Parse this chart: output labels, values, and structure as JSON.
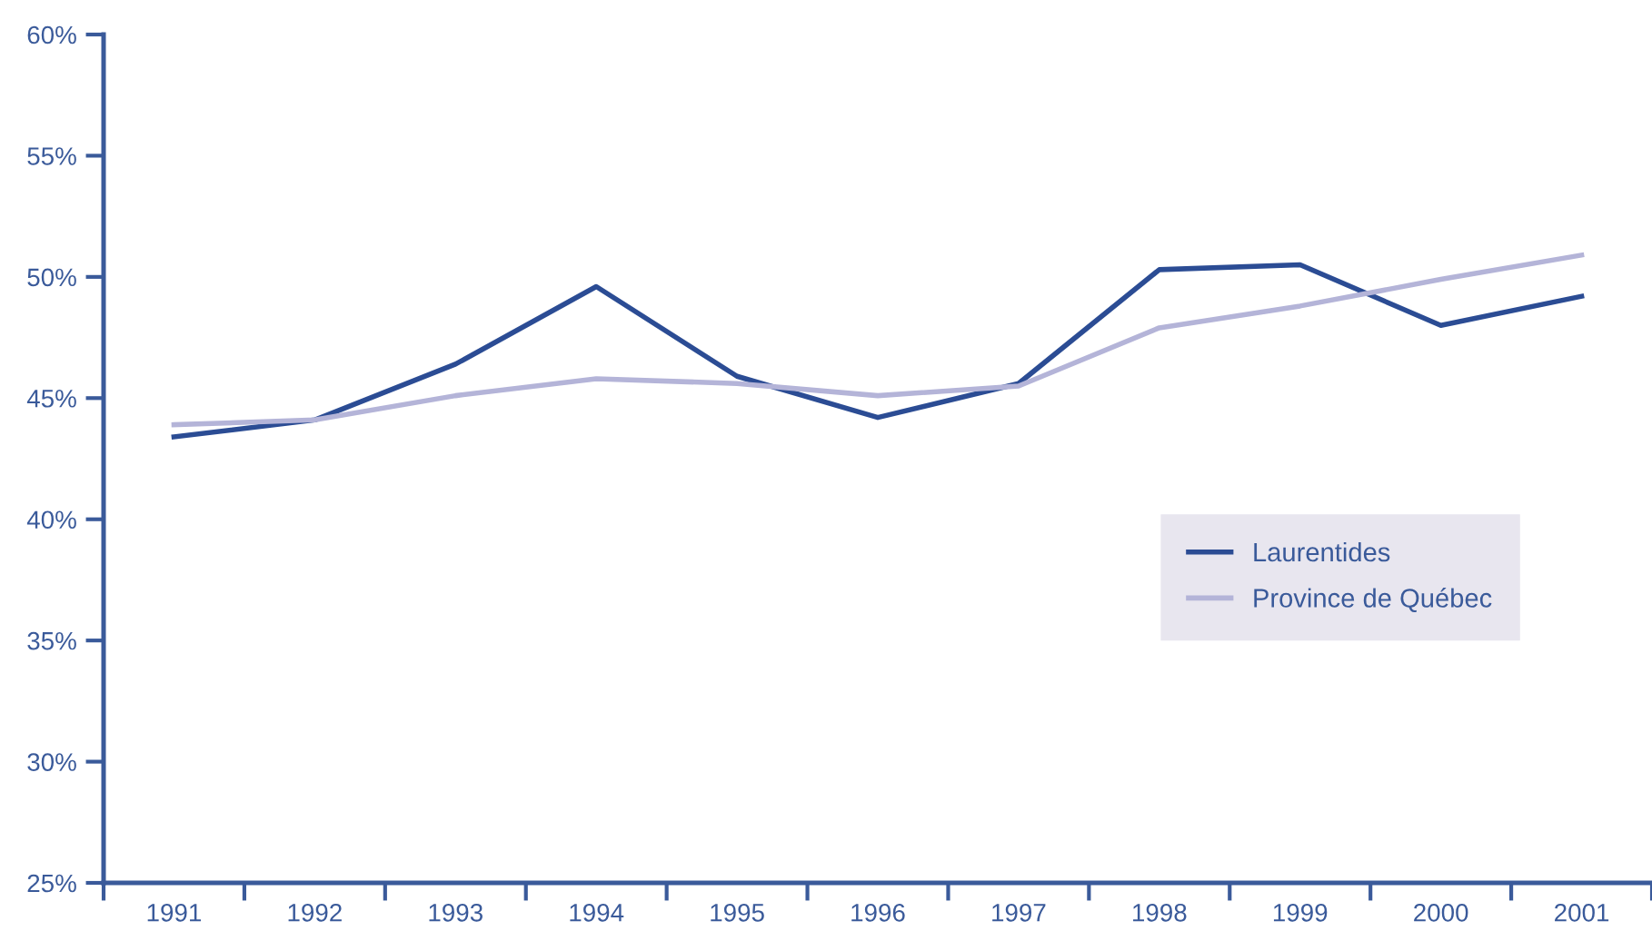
{
  "chart_data": {
    "type": "line",
    "categories": [
      "1991",
      "1992",
      "1993",
      "1994",
      "1995",
      "1996",
      "1997",
      "1998",
      "1999",
      "2000",
      "2001"
    ],
    "series": [
      {
        "name": "Laurentides",
        "color": "#2b4c94",
        "values": [
          43.4,
          44.1,
          46.4,
          49.6,
          45.9,
          44.2,
          45.6,
          50.3,
          50.5,
          48.0,
          49.2
        ]
      },
      {
        "name": "Province de Québec",
        "color": "#b4b4d8",
        "values": [
          43.9,
          44.1,
          45.1,
          45.8,
          45.6,
          45.1,
          45.5,
          47.9,
          48.8,
          49.9,
          50.9
        ]
      }
    ],
    "ylim": [
      25,
      60
    ],
    "yticks": [
      {
        "value": 25,
        "label": "25%"
      },
      {
        "value": 30,
        "label": "30%"
      },
      {
        "value": 35,
        "label": "35%"
      },
      {
        "value": 40,
        "label": "40%"
      },
      {
        "value": 45,
        "label": "45%"
      },
      {
        "value": 50,
        "label": "50%"
      },
      {
        "value": 55,
        "label": "55%"
      },
      {
        "value": 60,
        "label": "60%"
      }
    ],
    "grid": false,
    "legend": "right",
    "marker": "none",
    "line_style": "solid"
  }
}
